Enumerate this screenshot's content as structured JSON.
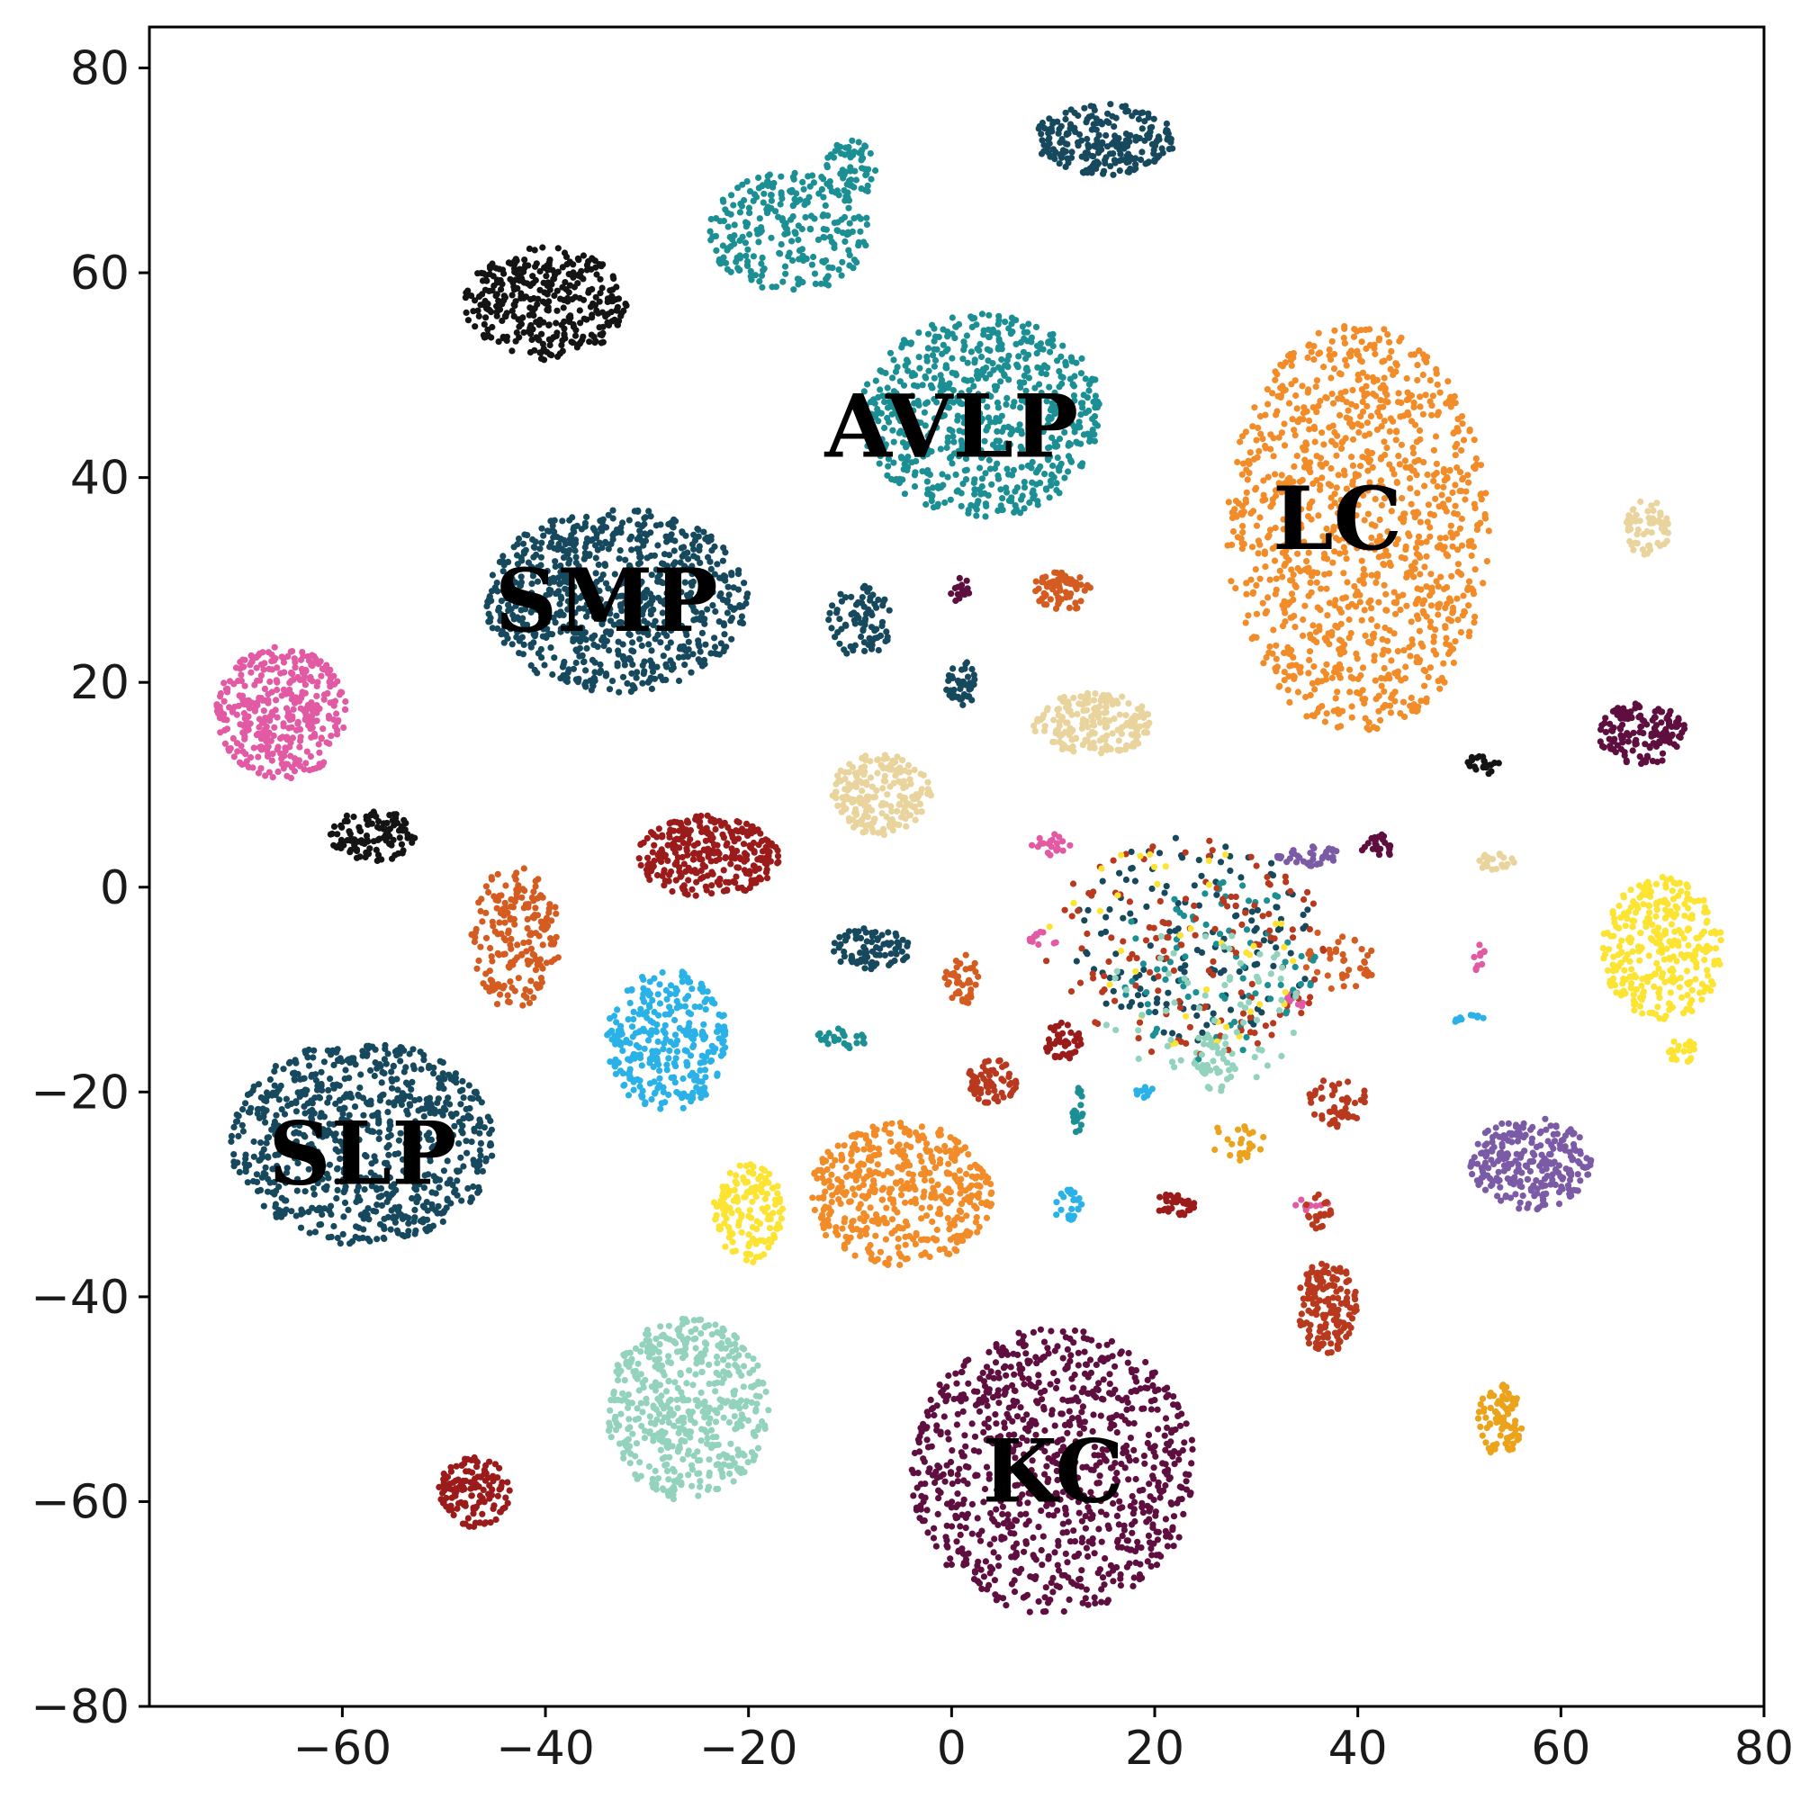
{
  "chart_data": {
    "type": "scatter",
    "title": "",
    "xlabel": "",
    "ylabel": "",
    "xlim": [
      -79,
      80
    ],
    "ylim": [
      -80,
      84
    ],
    "grid": false,
    "x_ticks": [
      -60,
      -40,
      -20,
      0,
      20,
      40,
      60,
      80
    ],
    "y_ticks": [
      80,
      60,
      40,
      20,
      0,
      -20,
      -40,
      -60,
      -80
    ],
    "x_tick_labels": [
      "−60",
      "−40",
      "−20",
      "0",
      "20",
      "40",
      "60",
      "80"
    ],
    "y_tick_labels": [
      "80",
      "60",
      "40",
      "20",
      "0",
      "−20",
      "−40",
      "−60",
      "−80"
    ],
    "annotations": [
      {
        "text": "AVLP",
        "x": 0,
        "y": 45
      },
      {
        "text": "LC",
        "x": 38,
        "y": 36
      },
      {
        "text": "SMP",
        "x": -34,
        "y": 28
      },
      {
        "text": "SLP",
        "x": -58,
        "y": -26
      },
      {
        "text": "KC",
        "x": 10,
        "y": -57
      }
    ],
    "series": [
      {
        "name": "KC",
        "color": "#5e0f3f",
        "clusters": [
          {
            "cx": 10,
            "cy": -57,
            "rx": 14,
            "ry": 14,
            "n": 900
          },
          {
            "cx": 1,
            "cy": 29,
            "rx": 1.2,
            "ry": 1.3,
            "n": 15
          },
          {
            "cx": 68,
            "cy": 15,
            "rx": 4.3,
            "ry": 3.0,
            "n": 150
          },
          {
            "cx": 42,
            "cy": 4,
            "rx": 1.8,
            "ry": 1.2,
            "n": 25
          }
        ]
      },
      {
        "name": "LC",
        "color": "#f28c28",
        "clusters": [
          {
            "cx": 40,
            "cy": 35,
            "rx": 13,
            "ry": 20,
            "n": 1100
          },
          {
            "cx": -5,
            "cy": -30,
            "rx": 9,
            "ry": 7,
            "n": 450
          }
        ]
      },
      {
        "name": "AVLP",
        "color": "#1b8f94",
        "clusters": [
          {
            "cx": 3,
            "cy": 46,
            "rx": 12,
            "ry": 10,
            "n": 700
          },
          {
            "cx": -16,
            "cy": 64,
            "rx": 8,
            "ry": 6,
            "n": 260
          },
          {
            "cx": -10,
            "cy": 70,
            "rx": 2.5,
            "ry": 3,
            "n": 60
          },
          {
            "cx": -11,
            "cy": -15,
            "rx": 2.5,
            "ry": 1.2,
            "n": 25
          },
          {
            "cx": 12.5,
            "cy": -22,
            "rx": 0.6,
            "ry": 2.5,
            "n": 20
          }
        ]
      },
      {
        "name": "SMP",
        "color": "#17495e",
        "clusters": [
          {
            "cx": -33,
            "cy": 28,
            "rx": 13,
            "ry": 9,
            "n": 800
          },
          {
            "cx": 15,
            "cy": 73,
            "rx": 7,
            "ry": 3.5,
            "n": 240
          },
          {
            "cx": -9,
            "cy": 26,
            "rx": 3.2,
            "ry": 3.5,
            "n": 80
          },
          {
            "cx": 1,
            "cy": 20,
            "rx": 1.8,
            "ry": 2.4,
            "n": 45
          },
          {
            "cx": -8,
            "cy": -6,
            "rx": 4,
            "ry": 2,
            "n": 80
          }
        ]
      },
      {
        "name": "SLP",
        "color": "#17495e",
        "clusters": [
          {
            "cx": -58,
            "cy": -25,
            "rx": 13,
            "ry": 10,
            "n": 800
          }
        ]
      },
      {
        "name": "black",
        "color": "#141414",
        "clusters": [
          {
            "cx": -40,
            "cy": 57,
            "rx": 8,
            "ry": 5.5,
            "n": 350
          },
          {
            "cx": -57,
            "cy": 5,
            "rx": 4.2,
            "ry": 2.6,
            "n": 110
          },
          {
            "cx": 52.5,
            "cy": 12,
            "rx": 1.8,
            "ry": 1,
            "n": 25
          }
        ]
      },
      {
        "name": "pink",
        "color": "#e25aa3",
        "clusters": [
          {
            "cx": -66,
            "cy": 17,
            "rx": 6.5,
            "ry": 6.5,
            "n": 380
          },
          {
            "cx": 10,
            "cy": 4,
            "rx": 2.2,
            "ry": 1.2,
            "n": 20
          },
          {
            "cx": 34,
            "cy": -11,
            "rx": 1.1,
            "ry": 0.7,
            "n": 12
          },
          {
            "cx": 35,
            "cy": -31,
            "rx": 2.2,
            "ry": 0.6,
            "n": 10
          },
          {
            "cx": 52,
            "cy": -7,
            "rx": 0.6,
            "ry": 1.4,
            "n": 10
          },
          {
            "cx": 9,
            "cy": -5,
            "rx": 1.5,
            "ry": 0.8,
            "n": 12
          }
        ]
      },
      {
        "name": "orange",
        "color": "#d45c20",
        "clusters": [
          {
            "cx": -43,
            "cy": -5,
            "rx": 4.5,
            "ry": 7,
            "n": 190
          },
          {
            "cx": 11,
            "cy": 29,
            "rx": 3,
            "ry": 2,
            "n": 70
          },
          {
            "cx": 1,
            "cy": -9,
            "rx": 1.8,
            "ry": 2.5,
            "n": 40
          },
          {
            "cx": 38,
            "cy": -7,
            "rx": 4,
            "ry": 3,
            "n": 40
          }
        ]
      },
      {
        "name": "beige",
        "color": "#e8d49c",
        "clusters": [
          {
            "cx": -7,
            "cy": 9,
            "rx": 5,
            "ry": 4,
            "n": 200
          },
          {
            "cx": 14,
            "cy": 16,
            "rx": 6,
            "ry": 3,
            "n": 190
          },
          {
            "cx": 68.5,
            "cy": 35,
            "rx": 2.2,
            "ry": 2.8,
            "n": 60
          },
          {
            "cx": 53.5,
            "cy": 2.5,
            "rx": 2,
            "ry": 0.8,
            "n": 20
          }
        ]
      },
      {
        "name": "darkred",
        "color": "#9b1b1b",
        "clusters": [
          {
            "cx": -24,
            "cy": 3,
            "rx": 7,
            "ry": 4,
            "n": 300
          },
          {
            "cx": -47,
            "cy": -59,
            "rx": 3.5,
            "ry": 3.5,
            "n": 130
          },
          {
            "cx": 11,
            "cy": -15,
            "rx": 2,
            "ry": 1.8,
            "n": 40
          },
          {
            "cx": 22,
            "cy": -31,
            "rx": 2,
            "ry": 1.2,
            "n": 35
          }
        ]
      },
      {
        "name": "skyblue",
        "color": "#2ab2e8",
        "clusters": [
          {
            "cx": -28,
            "cy": -15,
            "rx": 6,
            "ry": 7,
            "n": 300
          },
          {
            "cx": 11.5,
            "cy": -31,
            "rx": 1.6,
            "ry": 1.6,
            "n": 25
          },
          {
            "cx": 51,
            "cy": -13,
            "rx": 1.5,
            "ry": 0.6,
            "n": 12
          },
          {
            "cx": 19,
            "cy": -20,
            "rx": 1.1,
            "ry": 0.6,
            "n": 10
          }
        ]
      },
      {
        "name": "yellow",
        "color": "#fde332",
        "clusters": [
          {
            "cx": -20,
            "cy": -32,
            "rx": 3.5,
            "ry": 5,
            "n": 150
          },
          {
            "cx": 70,
            "cy": -6,
            "rx": 6,
            "ry": 7,
            "n": 320
          },
          {
            "cx": 72,
            "cy": -16,
            "rx": 1.5,
            "ry": 1.2,
            "n": 20
          }
        ]
      },
      {
        "name": "mint",
        "color": "#93d3bd",
        "clusters": [
          {
            "cx": -26,
            "cy": -51,
            "rx": 8,
            "ry": 9,
            "n": 500
          },
          {
            "cx": 26,
            "cy": -17,
            "rx": 2,
            "ry": 3,
            "n": 40
          }
        ]
      },
      {
        "name": "purple",
        "color": "#7b5aa6",
        "clusters": [
          {
            "cx": 57,
            "cy": -27,
            "rx": 6,
            "ry": 4.5,
            "n": 260
          },
          {
            "cx": 35,
            "cy": 3,
            "rx": 3.5,
            "ry": 1,
            "n": 40
          }
        ]
      },
      {
        "name": "rust",
        "color": "#b8391d",
        "clusters": [
          {
            "cx": 37,
            "cy": -41,
            "rx": 3,
            "ry": 4.5,
            "n": 150
          },
          {
            "cx": 4,
            "cy": -19,
            "rx": 2.5,
            "ry": 2.2,
            "n": 70
          },
          {
            "cx": 38,
            "cy": -21,
            "rx": 3,
            "ry": 2.5,
            "n": 50
          },
          {
            "cx": 36,
            "cy": -32,
            "rx": 1.5,
            "ry": 2,
            "n": 20
          }
        ]
      },
      {
        "name": "amber",
        "color": "#eca31c",
        "clusters": [
          {
            "cx": 54,
            "cy": -52,
            "rx": 2.2,
            "ry": 3.5,
            "n": 80
          },
          {
            "cx": 28,
            "cy": -25,
            "rx": 3,
            "ry": 2,
            "n": 25
          }
        ]
      },
      {
        "name": "mixed",
        "color": "#17495e",
        "clusters": [
          {
            "cx": 24,
            "cy": -5,
            "rx": 12,
            "ry": 10,
            "n": 160
          }
        ]
      },
      {
        "name": "mixed-teal",
        "color": "#1b8f94",
        "clusters": [
          {
            "cx": 26,
            "cy": -8,
            "rx": 10,
            "ry": 9,
            "n": 80
          }
        ]
      },
      {
        "name": "mixed-rust",
        "color": "#b8391d",
        "clusters": [
          {
            "cx": 23,
            "cy": -6,
            "rx": 14,
            "ry": 11,
            "n": 140
          }
        ]
      },
      {
        "name": "mixed-yellow",
        "color": "#fde332",
        "clusters": [
          {
            "cx": 22,
            "cy": -6,
            "rx": 13,
            "ry": 10,
            "n": 40
          }
        ]
      },
      {
        "name": "mixed-mint",
        "color": "#93d3bd",
        "clusters": [
          {
            "cx": 25,
            "cy": -12,
            "rx": 10,
            "ry": 8,
            "n": 70
          }
        ]
      }
    ]
  }
}
